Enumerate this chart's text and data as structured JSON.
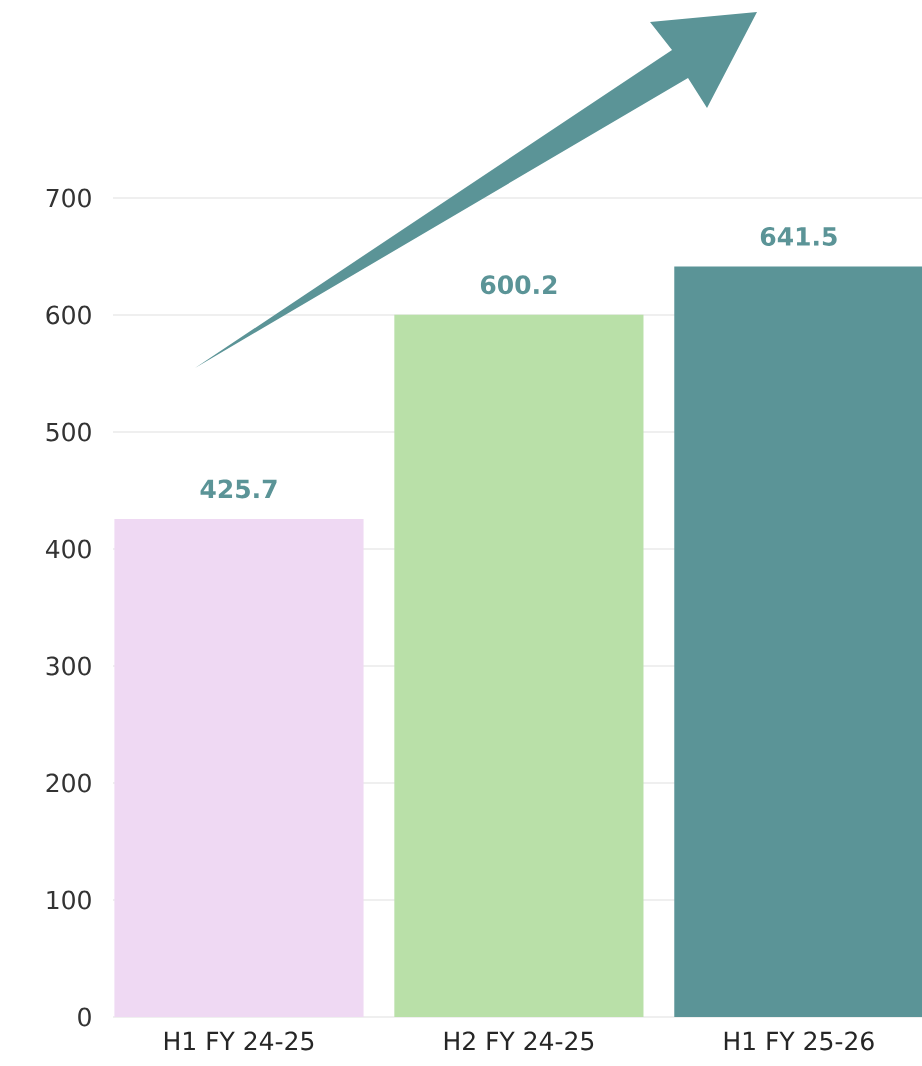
{
  "chart_data": {
    "type": "bar",
    "categories": [
      "H1 FY 24-25",
      "H2 FY 24-25",
      "H1 FY 25-26"
    ],
    "values": [
      425.7,
      600.2,
      641.5
    ],
    "colors": [
      "#efd9f3",
      "#b9e0a8",
      "#5b9497"
    ],
    "value_labels": [
      "425.7",
      "600.2",
      "641.5"
    ],
    "ylim": [
      0,
      700
    ],
    "yticks": [
      0,
      100,
      200,
      300,
      400,
      500,
      600,
      700
    ],
    "grid": "y"
  }
}
